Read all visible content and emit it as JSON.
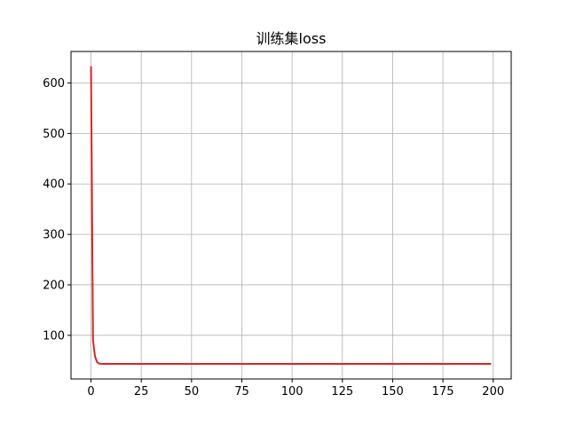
{
  "chart_data": {
    "type": "line",
    "title": "训练集loss",
    "xlabel": "",
    "ylabel": "",
    "xlim": [
      -9.95,
      208.95
    ],
    "ylim": [
      13.5,
      662.5
    ],
    "grid": true,
    "x_ticks": [
      0,
      25,
      50,
      75,
      100,
      125,
      150,
      175,
      200
    ],
    "y_ticks": [
      100,
      200,
      300,
      400,
      500,
      600
    ],
    "series": [
      {
        "color": "#d62728",
        "x": [
          0,
          1,
          2,
          3,
          4,
          5,
          10,
          20,
          50,
          100,
          150,
          199
        ],
        "y": [
          633,
          90,
          58,
          47,
          44,
          43.5,
          43.5,
          43.5,
          43.5,
          43.5,
          43.5,
          43.5
        ]
      }
    ]
  },
  "colors": {
    "line": "#d62728",
    "grid": "#b0b0b0",
    "axes": "#000000",
    "background": "#ffffff"
  }
}
